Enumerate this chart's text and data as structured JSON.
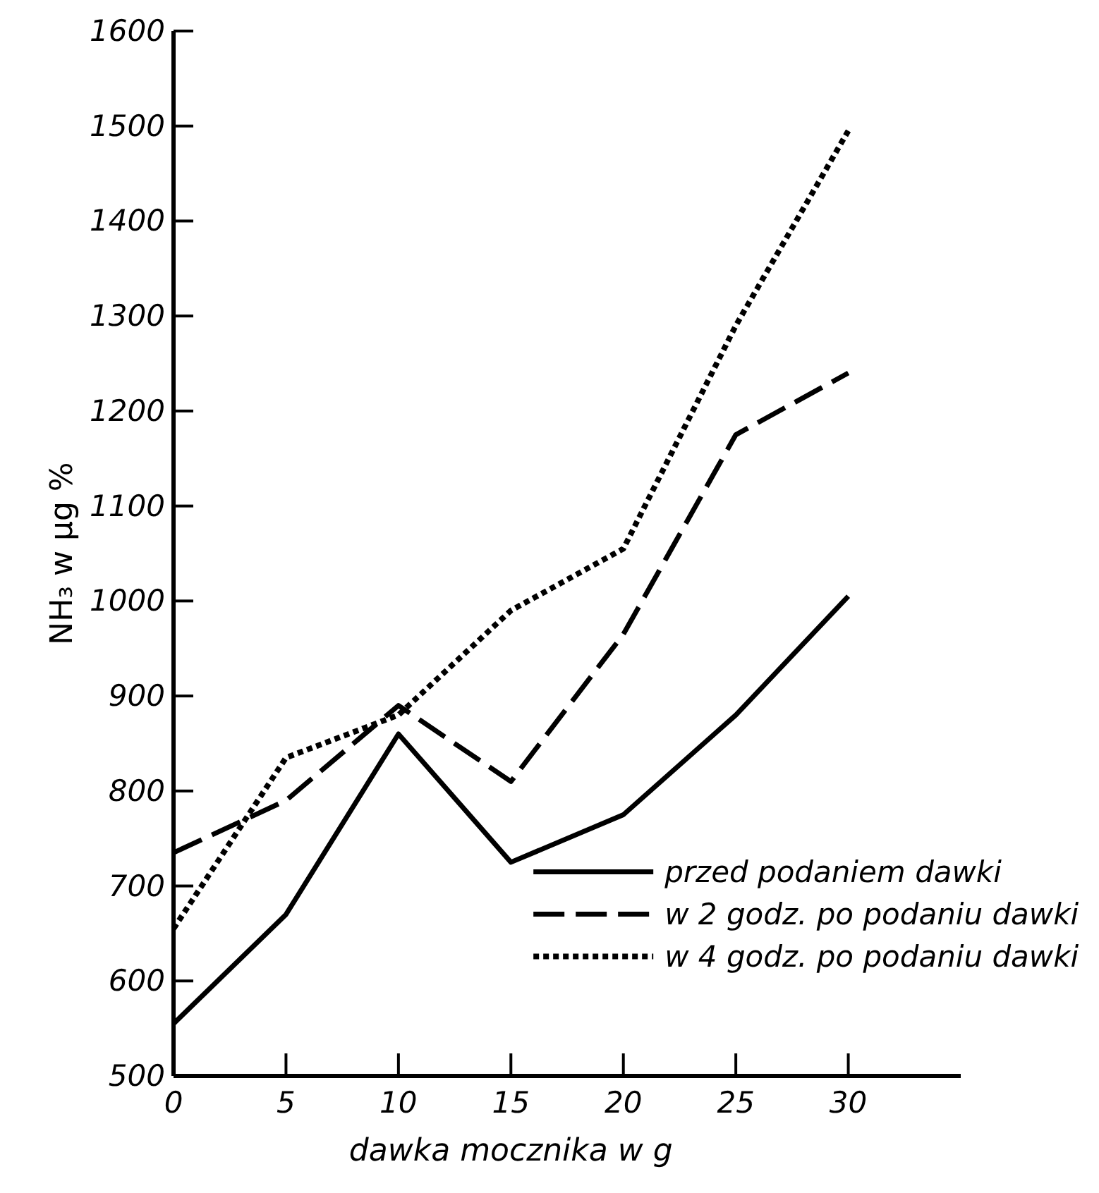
{
  "chart_data": {
    "type": "line",
    "xlabel": "dawka mocznika  w  g",
    "ylabel": "NH₃  w  μg  %",
    "x": [
      0,
      5,
      10,
      15,
      20,
      25,
      30
    ],
    "series": [
      {
        "name": "przed podaniem dawki",
        "color": "#000000",
        "line_style": "solid",
        "values": [
          555,
          670,
          860,
          725,
          775,
          880,
          1005
        ]
      },
      {
        "name": "w  2 godz. po podaniu dawki",
        "color": "#000000",
        "line_style": "dashed",
        "values": [
          735,
          790,
          890,
          810,
          965,
          1175,
          1240
        ]
      },
      {
        "name": "w  4 godz. po podaniu dawki",
        "color": "#000000",
        "line_style": "dotted",
        "values": [
          655,
          835,
          880,
          990,
          1055,
          1290,
          1495
        ]
      }
    ],
    "xlim": [
      0,
      35
    ],
    "xticks": [
      0,
      5,
      10,
      15,
      20,
      25,
      30
    ],
    "ylim": [
      500,
      1600
    ],
    "yticks": [
      500,
      600,
      700,
      800,
      900,
      1000,
      1100,
      1200,
      1300,
      1400,
      1500,
      1600
    ],
    "grid": false,
    "legend": "bottom right",
    "marker": "none"
  }
}
